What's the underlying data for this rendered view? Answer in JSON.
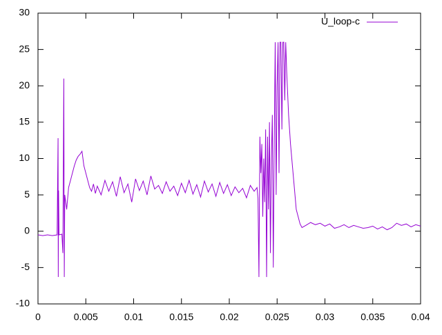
{
  "chart_data": {
    "type": "line",
    "x": [
      0,
      0.0005,
      0.001,
      0.0015,
      0.002,
      0.0021,
      0.00212,
      0.00215,
      0.0022,
      0.0025,
      0.0026,
      0.0027,
      0.00275,
      0.0028,
      0.003,
      0.0032,
      0.0034,
      0.0036,
      0.0038,
      0.004,
      0.0042,
      0.0044,
      0.0046,
      0.0047,
      0.0048,
      0.005,
      0.0052,
      0.0054,
      0.0056,
      0.0058,
      0.006,
      0.0062,
      0.0066,
      0.007,
      0.0074,
      0.0078,
      0.0082,
      0.0086,
      0.009,
      0.0094,
      0.0098,
      0.0102,
      0.0106,
      0.011,
      0.0114,
      0.0118,
      0.0122,
      0.0126,
      0.013,
      0.0134,
      0.0138,
      0.0142,
      0.0146,
      0.015,
      0.0154,
      0.0158,
      0.0162,
      0.0166,
      0.017,
      0.0174,
      0.0178,
      0.0182,
      0.0186,
      0.019,
      0.0194,
      0.0198,
      0.0202,
      0.0206,
      0.021,
      0.0214,
      0.0218,
      0.0222,
      0.0226,
      0.0229,
      0.023,
      0.0231,
      0.0232,
      0.0233,
      0.0234,
      0.0235,
      0.0236,
      0.0237,
      0.0238,
      0.0239,
      0.024,
      0.0241,
      0.0242,
      0.0243,
      0.0244,
      0.0245,
      0.0246,
      0.0247,
      0.0248,
      0.0249,
      0.025,
      0.0251,
      0.0252,
      0.0253,
      0.0254,
      0.0255,
      0.0256,
      0.0257,
      0.0258,
      0.0259,
      0.026,
      0.0262,
      0.0264,
      0.0266,
      0.0268,
      0.027,
      0.0272,
      0.0274,
      0.0276,
      0.028,
      0.0285,
      0.029,
      0.0295,
      0.03,
      0.0305,
      0.031,
      0.0315,
      0.032,
      0.0325,
      0.033,
      0.0335,
      0.034,
      0.0345,
      0.035,
      0.0355,
      0.036,
      0.0365,
      0.037,
      0.0375,
      0.038,
      0.0385,
      0.039,
      0.0395,
      0.04
    ],
    "series": [
      {
        "name": "U_loop-c",
        "color": "#9400d3",
        "values": [
          -0.5,
          -0.6,
          -0.5,
          -0.6,
          -0.5,
          12.8,
          -6.3,
          5.6,
          -0.5,
          -0.4,
          -3,
          21,
          -6.3,
          5,
          3,
          6,
          7,
          8,
          9,
          9.8,
          10.3,
          10.6,
          11,
          10,
          9,
          8,
          7,
          6,
          5.5,
          6.5,
          5.2,
          6.2,
          5,
          7,
          5.5,
          6.8,
          4.8,
          7.5,
          5.3,
          6.5,
          4,
          7.2,
          5.6,
          6.9,
          5,
          7.6,
          5.8,
          6.3,
          5.2,
          6.8,
          5.5,
          6.2,
          4.9,
          6.6,
          5.3,
          7,
          5.1,
          6.4,
          4.7,
          6.9,
          5.4,
          6.5,
          4.8,
          6.7,
          5.2,
          6.4,
          4.9,
          6.1,
          5.3,
          5.9,
          4.6,
          6.3,
          5.5,
          6,
          4.5,
          -6.3,
          13,
          8,
          12,
          2,
          10,
          4,
          14,
          -6.3,
          13,
          3,
          15,
          -3,
          10,
          16,
          -5,
          12,
          26,
          5,
          20,
          26,
          8,
          26,
          26,
          14,
          26,
          26,
          18,
          26,
          22,
          16,
          12,
          9,
          6,
          3,
          2,
          1,
          0.5,
          0.8,
          1.2,
          0.9,
          1.1,
          0.7,
          1.0,
          0.4,
          0.6,
          0.9,
          0.5,
          0.8,
          0.6,
          0.4,
          0.5,
          0.7,
          0.3,
          0.6,
          0.2,
          0.5,
          1.1,
          0.8,
          1.0,
          0.6,
          0.9,
          0.7
        ]
      }
    ],
    "xlim": [
      0,
      0.04
    ],
    "xticks": [
      0,
      0.005,
      0.01,
      0.015,
      0.02,
      0.025,
      0.03,
      0.035,
      0.04
    ],
    "ylim": [
      -10,
      30
    ],
    "yticks": [
      -10,
      -5,
      0,
      5,
      10,
      15,
      20,
      25,
      30
    ],
    "grid": false,
    "legend": "top-right"
  }
}
